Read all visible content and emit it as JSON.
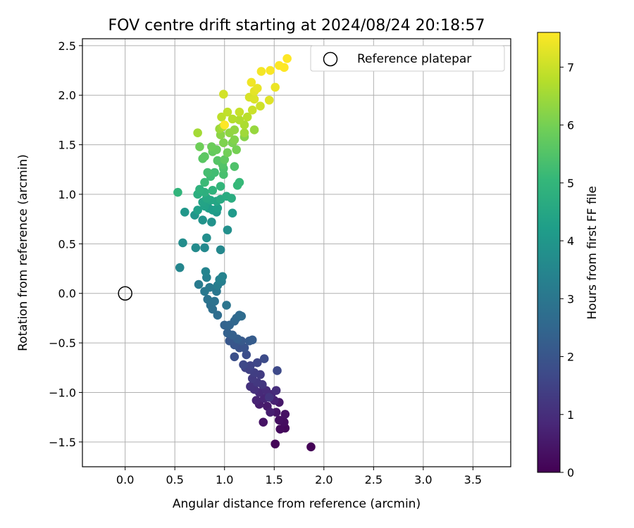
{
  "chart_data": {
    "type": "scatter",
    "title": "FOV centre drift starting at 2024/08/24 20:18:57",
    "xlabel": "Angular distance from reference (arcmin)",
    "ylabel": "Rotation from reference (arcmin)",
    "xlim": [
      -0.43,
      3.88
    ],
    "ylim": [
      -1.75,
      2.57
    ],
    "xticks": [
      0.0,
      0.5,
      1.0,
      1.5,
      2.0,
      2.5,
      3.0,
      3.5
    ],
    "xtick_labels": [
      "0.0",
      "0.5",
      "1.0",
      "1.5",
      "2.0",
      "2.5",
      "3.0",
      "3.5"
    ],
    "yticks": [
      -1.5,
      -1.0,
      -0.5,
      0.0,
      0.5,
      1.0,
      1.5,
      2.0,
      2.5
    ],
    "ytick_labels": [
      "−1.5",
      "−1.0",
      "−0.5",
      "0.0",
      "0.5",
      "1.0",
      "1.5",
      "2.0",
      "2.5"
    ],
    "grid": true,
    "legend": {
      "position": "top-right",
      "entries": [
        "Reference platepar"
      ]
    },
    "reference_point": {
      "name": "Reference platepar",
      "x": 0.0,
      "y": 0.0
    },
    "colorbar": {
      "label": "Hours from first FF file",
      "range": [
        0,
        7.6
      ],
      "ticks": [
        0,
        1,
        2,
        3,
        4,
        5,
        6,
        7
      ],
      "colormap": "viridis",
      "colormap_stops": [
        "#440154",
        "#482878",
        "#3e4a89",
        "#31688e",
        "#26828e",
        "#1f9e89",
        "#35b779",
        "#6ece58",
        "#b5de2b",
        "#fde725"
      ]
    },
    "series": [
      {
        "points": [
          [
            1.87,
            -1.55,
            0.05
          ],
          [
            1.51,
            -1.52,
            0.1
          ],
          [
            1.61,
            -1.36,
            0.15
          ],
          [
            1.56,
            -1.37,
            0.2
          ],
          [
            1.6,
            -1.3,
            0.25
          ],
          [
            1.55,
            -1.28,
            0.3
          ],
          [
            1.61,
            -1.22,
            0.35
          ],
          [
            1.39,
            -1.3,
            0.4
          ],
          [
            1.52,
            -1.2,
            0.45
          ],
          [
            1.55,
            -1.1,
            0.5
          ],
          [
            1.43,
            -1.14,
            0.55
          ],
          [
            1.35,
            -1.12,
            0.6
          ],
          [
            1.46,
            -1.2,
            0.65
          ],
          [
            1.5,
            -1.08,
            0.7
          ],
          [
            1.32,
            -1.08,
            0.75
          ],
          [
            1.4,
            -1.06,
            0.8
          ],
          [
            1.47,
            -1.02,
            0.85
          ],
          [
            1.35,
            -1.0,
            0.9
          ],
          [
            1.42,
            -0.98,
            0.95
          ],
          [
            1.52,
            -0.98,
            1.0
          ],
          [
            1.3,
            -0.97,
            1.05
          ],
          [
            1.26,
            -0.94,
            1.1
          ],
          [
            1.45,
            -1.05,
            1.15
          ],
          [
            1.38,
            -0.92,
            1.2
          ],
          [
            1.33,
            -0.9,
            1.25
          ],
          [
            1.28,
            -0.86,
            1.3
          ],
          [
            1.36,
            -0.82,
            1.35
          ],
          [
            1.3,
            -0.8,
            1.4
          ],
          [
            1.25,
            -0.77,
            1.45
          ],
          [
            1.21,
            -0.75,
            1.5
          ],
          [
            1.26,
            -0.73,
            1.55
          ],
          [
            1.33,
            -0.7,
            1.6
          ],
          [
            1.19,
            -0.72,
            1.65
          ],
          [
            1.53,
            -0.78,
            1.7
          ],
          [
            1.4,
            -0.66,
            1.75
          ],
          [
            1.22,
            -0.62,
            1.8
          ],
          [
            1.1,
            -0.64,
            1.85
          ],
          [
            1.15,
            -0.55,
            1.9
          ],
          [
            1.2,
            -0.55,
            1.95
          ],
          [
            1.1,
            -0.52,
            2.0
          ],
          [
            1.05,
            -0.48,
            2.05
          ],
          [
            1.17,
            -0.48,
            2.1
          ],
          [
            1.25,
            -0.48,
            2.15
          ],
          [
            1.28,
            -0.47,
            2.2
          ],
          [
            1.13,
            -0.46,
            2.25
          ],
          [
            1.08,
            -0.42,
            2.3
          ],
          [
            1.03,
            -0.4,
            2.35
          ],
          [
            1.0,
            -0.32,
            2.4
          ],
          [
            1.05,
            -0.32,
            2.45
          ],
          [
            1.1,
            -0.28,
            2.5
          ],
          [
            1.12,
            -0.25,
            2.55
          ],
          [
            1.15,
            -0.22,
            2.6
          ],
          [
            1.17,
            -0.23,
            2.65
          ],
          [
            0.93,
            -0.22,
            2.7
          ],
          [
            0.88,
            -0.16,
            2.75
          ],
          [
            0.86,
            -0.12,
            2.8
          ],
          [
            0.9,
            -0.08,
            2.85
          ],
          [
            0.83,
            -0.06,
            2.9
          ],
          [
            1.02,
            -0.12,
            2.95
          ],
          [
            0.92,
            0.02,
            3.0
          ],
          [
            0.8,
            0.02,
            3.05
          ],
          [
            0.85,
            0.06,
            3.1
          ],
          [
            0.74,
            0.09,
            3.15
          ],
          [
            0.93,
            0.08,
            3.2
          ],
          [
            0.97,
            0.12,
            3.25
          ],
          [
            0.82,
            0.16,
            3.3
          ],
          [
            0.95,
            0.14,
            3.35
          ],
          [
            0.98,
            0.17,
            3.4
          ],
          [
            0.81,
            0.22,
            3.45
          ],
          [
            0.55,
            0.26,
            3.5
          ],
          [
            0.96,
            0.44,
            3.55
          ],
          [
            0.8,
            0.46,
            3.6
          ],
          [
            0.71,
            0.46,
            3.65
          ],
          [
            0.58,
            0.51,
            3.7
          ],
          [
            0.82,
            0.56,
            3.75
          ],
          [
            1.03,
            0.64,
            3.8
          ],
          [
            0.87,
            0.72,
            3.85
          ],
          [
            0.78,
            0.74,
            3.9
          ],
          [
            0.7,
            0.79,
            3.95
          ],
          [
            0.6,
            0.82,
            4.0
          ],
          [
            0.92,
            0.82,
            4.05
          ],
          [
            1.08,
            0.81,
            4.1
          ],
          [
            0.84,
            0.86,
            4.15
          ],
          [
            0.88,
            0.84,
            4.2
          ],
          [
            0.93,
            0.86,
            4.25
          ],
          [
            0.73,
            0.84,
            4.3
          ],
          [
            0.8,
            0.88,
            4.35
          ],
          [
            0.78,
            0.92,
            4.4
          ],
          [
            0.92,
            0.93,
            4.45
          ],
          [
            0.86,
            0.94,
            4.5
          ],
          [
            0.82,
            0.96,
            4.55
          ],
          [
            0.96,
            0.95,
            4.6
          ],
          [
            1.02,
            0.98,
            4.65
          ],
          [
            1.07,
            0.96,
            4.7
          ],
          [
            0.73,
            1.0,
            4.75
          ],
          [
            0.8,
            1.02,
            4.8
          ],
          [
            0.75,
            1.05,
            4.85
          ],
          [
            0.88,
            1.04,
            4.9
          ],
          [
            0.53,
            1.02,
            4.95
          ],
          [
            0.96,
            1.08,
            5.0
          ],
          [
            1.13,
            1.09,
            5.05
          ],
          [
            1.15,
            1.12,
            5.1
          ],
          [
            0.8,
            1.12,
            5.15
          ],
          [
            0.86,
            1.18,
            5.2
          ],
          [
            0.9,
            1.22,
            5.25
          ],
          [
            0.83,
            1.22,
            5.3
          ],
          [
            0.99,
            1.2,
            5.35
          ],
          [
            0.99,
            1.26,
            5.4
          ],
          [
            1.1,
            1.28,
            5.45
          ],
          [
            0.98,
            1.3,
            5.5
          ],
          [
            0.93,
            1.34,
            5.55
          ],
          [
            0.78,
            1.36,
            5.6
          ],
          [
            0.8,
            1.38,
            5.65
          ],
          [
            1.0,
            1.35,
            5.7
          ],
          [
            0.88,
            1.43,
            5.75
          ],
          [
            0.92,
            1.45,
            5.8
          ],
          [
            0.87,
            1.48,
            5.85
          ],
          [
            0.75,
            1.48,
            5.9
          ],
          [
            1.03,
            1.42,
            5.95
          ],
          [
            1.12,
            1.45,
            6.0
          ],
          [
            1.08,
            1.52,
            6.05
          ],
          [
            0.99,
            1.52,
            6.1
          ],
          [
            1.1,
            1.55,
            6.15
          ],
          [
            1.2,
            1.58,
            6.2
          ],
          [
            0.96,
            1.6,
            6.25
          ],
          [
            1.05,
            1.62,
            6.3
          ],
          [
            1.1,
            1.65,
            6.35
          ],
          [
            1.3,
            1.65,
            6.4
          ],
          [
            0.95,
            1.66,
            6.45
          ],
          [
            1.2,
            1.62,
            6.5
          ],
          [
            0.73,
            1.62,
            6.55
          ],
          [
            0.98,
            1.68,
            6.6
          ],
          [
            1.2,
            1.7,
            6.65
          ],
          [
            1.15,
            1.75,
            6.7
          ],
          [
            1.08,
            1.76,
            6.75
          ],
          [
            1.23,
            1.78,
            6.8
          ],
          [
            0.97,
            1.78,
            6.85
          ],
          [
            1.03,
            1.83,
            6.9
          ],
          [
            1.15,
            1.83,
            6.95
          ],
          [
            1.28,
            1.85,
            7.0
          ],
          [
            1.36,
            1.89,
            7.05
          ],
          [
            0.99,
            2.01,
            7.1
          ],
          [
            1.25,
            1.98,
            7.15
          ],
          [
            1.3,
            1.96,
            7.2
          ],
          [
            1.45,
            1.95,
            7.25
          ],
          [
            1.3,
            2.04,
            7.3
          ],
          [
            1.33,
            2.07,
            7.35
          ],
          [
            1.51,
            2.08,
            7.4
          ],
          [
            1.27,
            2.13,
            7.45
          ],
          [
            1.37,
            2.24,
            7.5
          ],
          [
            1.46,
            2.25,
            7.55
          ],
          [
            1.55,
            2.3,
            7.6
          ],
          [
            1.6,
            2.28,
            7.6
          ],
          [
            1.63,
            2.37,
            7.6
          ],
          [
            1.0,
            1.7,
            7.6
          ]
        ]
      }
    ]
  }
}
